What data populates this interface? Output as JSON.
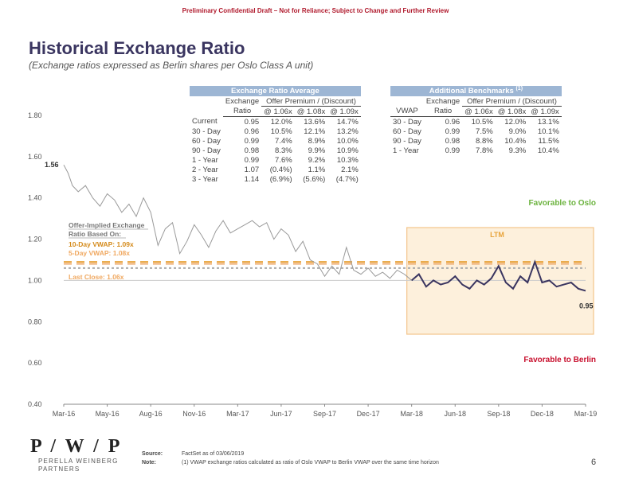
{
  "header": {
    "banner": "Preliminary Confidential Draft – Not for Reliance; Subject to Change and Further Review"
  },
  "page": {
    "title": "Historical Exchange Ratio",
    "subtitle": "(Exchange ratios expressed as Berlin shares per Oslo Class A unit)"
  },
  "chart_data": {
    "type": "line",
    "title": "Historical Exchange Ratio",
    "xlabel": "",
    "ylabel": "",
    "ylim": [
      0.4,
      1.8
    ],
    "yticks": [
      "0.40",
      "0.60",
      "0.80",
      "1.00",
      "1.20",
      "1.40",
      "1.60",
      "1.80"
    ],
    "xticks": [
      "Mar-16",
      "May-16",
      "Aug-16",
      "Nov-16",
      "Mar-17",
      "Jun-17",
      "Sep-17",
      "Dec-17",
      "Mar-18",
      "Jun-18",
      "Sep-18",
      "Dec-18",
      "Mar-19"
    ],
    "xlim_months": [
      0,
      36
    ],
    "series": [
      {
        "name": "Exchange Ratio",
        "x_months": [
          0,
          0.3,
          0.6,
          1,
          1.5,
          2,
          2.5,
          3,
          3.5,
          4,
          4.5,
          5,
          5.5,
          6,
          6.5,
          7,
          7.5,
          8,
          8.5,
          9,
          9.5,
          10,
          10.5,
          11,
          11.5,
          12,
          12.5,
          13,
          13.5,
          14,
          14.5,
          15,
          15.5,
          16,
          16.5,
          17,
          17.5,
          18,
          18.5,
          19,
          19.5,
          20,
          20.5,
          21,
          21.5,
          22,
          22.5,
          23,
          23.5,
          24,
          24.5,
          25,
          25.5,
          26,
          26.5,
          27,
          27.5,
          28,
          28.5,
          29,
          29.5,
          30,
          30.5,
          31,
          31.5,
          32,
          32.5,
          33,
          33.5,
          34,
          34.5,
          35,
          35.5,
          36
        ],
        "values": [
          1.56,
          1.52,
          1.46,
          1.43,
          1.46,
          1.4,
          1.36,
          1.42,
          1.39,
          1.33,
          1.37,
          1.31,
          1.4,
          1.33,
          1.17,
          1.25,
          1.28,
          1.13,
          1.19,
          1.27,
          1.22,
          1.16,
          1.24,
          1.29,
          1.23,
          1.25,
          1.27,
          1.29,
          1.26,
          1.28,
          1.2,
          1.25,
          1.22,
          1.14,
          1.19,
          1.1,
          1.08,
          1.02,
          1.07,
          1.03,
          1.16,
          1.05,
          1.03,
          1.06,
          1.02,
          1.04,
          1.01,
          1.05,
          1.03,
          1.0,
          1.03,
          0.97,
          1.0,
          0.98,
          0.99,
          1.02,
          0.98,
          0.96,
          1.0,
          0.98,
          1.01,
          1.07,
          0.99,
          0.96,
          1.02,
          0.99,
          1.09,
          0.99,
          1.0,
          0.97,
          0.98,
          0.99,
          0.96,
          0.95
        ],
        "ltm_start_month": 24
      }
    ],
    "reference_lines": [
      {
        "name": "Offer-Implied 10-Day VWAP",
        "value": 1.09,
        "style": "dashed",
        "color": "#e8a33a"
      },
      {
        "name": "Offer-Implied 5-Day VWAP",
        "value": 1.08,
        "style": "dashed",
        "color": "#f0b27a"
      },
      {
        "name": "Last Close",
        "value": 1.06,
        "style": "dashed",
        "color": "#aaaaaa"
      },
      {
        "name": "Parity",
        "value": 1.0,
        "style": "solid",
        "color": "#cccccc"
      }
    ],
    "annotations": {
      "start_label": "1.56",
      "end_label": "0.95",
      "offer_title": "Offer-Implied Exchange Ratio Based On:",
      "vwap10": "10-Day VWAP: 1.09x",
      "vwap5": "5-Day VWAP: 1.08x",
      "last_close": "Last Close: 1.06x",
      "ltm": "LTM",
      "favorable_oslo": "Favorable to Oslo",
      "favorable_berlin": "Favorable to Berlin"
    }
  },
  "colors": {
    "title": "#3a3560",
    "ltm_line": "#3a3560",
    "history_line": "#999999",
    "oslo": "#6cb33f",
    "berlin": "#c8102e",
    "ltm_fill": "#fdf0dc",
    "ltm_border": "#f3c48a",
    "band": "#9db6d4"
  },
  "tables": {
    "avg": {
      "band": "Exchange Ratio Average",
      "h1": [
        "Exchange",
        "Offer Premium / (Discount)"
      ],
      "h2": [
        "Ratio",
        "@ 1.06x",
        "@ 1.08x",
        "@ 1.09x"
      ],
      "rows": [
        [
          "Current",
          "0.95",
          "12.0%",
          "13.6%",
          "14.7%"
        ],
        [
          "30 - Day",
          "0.96",
          "10.5%",
          "12.1%",
          "13.2%"
        ],
        [
          "60 - Day",
          "0.99",
          "7.4%",
          "8.9%",
          "10.0%"
        ],
        [
          "90 - Day",
          "0.98",
          "8.3%",
          "9.9%",
          "10.9%"
        ],
        [
          "1 - Year",
          "0.99",
          "7.6%",
          "9.2%",
          "10.3%"
        ],
        [
          "2 - Year",
          "1.07",
          "(0.4%)",
          "1.1%",
          "2.1%"
        ],
        [
          "3 - Year",
          "1.14",
          "(6.9%)",
          "(5.6%)",
          "(4.7%)"
        ]
      ]
    },
    "bench": {
      "band": "Additional Benchmarks",
      "band_note": "(1)",
      "h1": [
        "Exchange",
        "Offer Premium / (Discount)"
      ],
      "h2": [
        "VWAP",
        "Ratio",
        "@ 1.06x",
        "@ 1.08x",
        "@ 1.09x"
      ],
      "rows": [
        [
          "30 - Day",
          "0.96",
          "10.5%",
          "12.0%",
          "13.1%"
        ],
        [
          "60 - Day",
          "0.99",
          "7.5%",
          "9.0%",
          "10.1%"
        ],
        [
          "90 - Day",
          "0.98",
          "8.8%",
          "10.4%",
          "11.5%"
        ],
        [
          "1 - Year",
          "0.99",
          "7.8%",
          "9.3%",
          "10.4%"
        ]
      ]
    }
  },
  "footer": {
    "logo_mark": "P / W / P",
    "firm_line1": "PERELLA WEINBERG",
    "firm_line2": "PARTNERS",
    "source_label": "Source:",
    "source_text": "FactSet as of 03/06/2019",
    "note_label": "Note:",
    "note_text": "(1)   VWAP exchange ratios calculated as ratio of Oslo VWAP to Berlin VWAP over the same time horizon",
    "page_number": "6"
  }
}
